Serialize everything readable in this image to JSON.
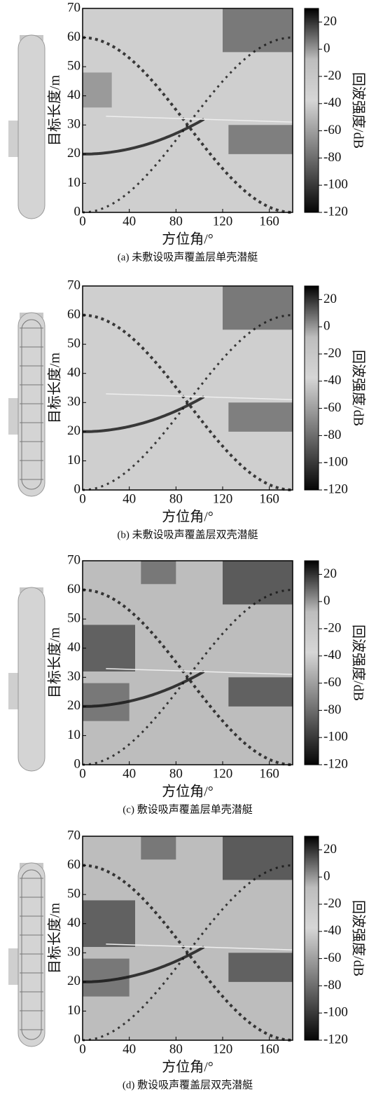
{
  "chart_data": [
    {
      "type": "heatmap",
      "caption": "(a) 未敷设吸声覆盖层单壳潜艇",
      "xlabel": "方位角/°",
      "ylabel": "目标长度/m",
      "colorbar_label": "回波强度/dB",
      "xlim": [
        0,
        180
      ],
      "xticks": [
        0,
        40,
        80,
        120,
        160
      ],
      "ylim": [
        0,
        70
      ],
      "yticks": [
        0,
        10,
        20,
        30,
        40,
        50,
        60,
        70
      ],
      "clim": [
        -120,
        30
      ],
      "cticks": [
        20,
        0,
        -20,
        -40,
        -60,
        -80,
        -100,
        -120
      ]
    },
    {
      "type": "heatmap",
      "caption": "(b) 未敷设吸声覆盖层双壳潜艇",
      "xlabel": "方位角/°",
      "ylabel": "目标长度/m",
      "colorbar_label": "回波强度/dB",
      "xlim": [
        0,
        180
      ],
      "xticks": [
        0,
        40,
        80,
        120,
        160
      ],
      "ylim": [
        0,
        70
      ],
      "yticks": [
        0,
        10,
        20,
        30,
        40,
        50,
        60,
        70
      ],
      "clim": [
        -120,
        30
      ],
      "cticks": [
        20,
        0,
        -20,
        -40,
        -60,
        -80,
        -100,
        -120
      ]
    },
    {
      "type": "heatmap",
      "caption": "(c) 敷设吸声覆盖层单壳潜艇",
      "xlabel": "方位角/°",
      "ylabel": "目标长度/m",
      "colorbar_label": "回波强度/dB",
      "xlim": [
        0,
        180
      ],
      "xticks": [
        0,
        40,
        80,
        120,
        160
      ],
      "ylim": [
        0,
        70
      ],
      "yticks": [
        0,
        10,
        20,
        30,
        40,
        50,
        60,
        70
      ],
      "clim": [
        -120,
        30
      ],
      "cticks": [
        20,
        0,
        -20,
        -40,
        -60,
        -80,
        -100,
        -120
      ]
    },
    {
      "type": "heatmap",
      "caption": "(d) 敷设吸声覆盖层双壳潜艇",
      "xlabel": "方位角/°",
      "ylabel": "目标长度/m",
      "colorbar_label": "回波强度/dB",
      "xlim": [
        0,
        180
      ],
      "xticks": [
        0,
        40,
        80,
        120,
        160
      ],
      "ylim": [
        0,
        70
      ],
      "yticks": [
        0,
        10,
        20,
        30,
        40,
        50,
        60,
        70
      ],
      "clim": [
        -120,
        30
      ],
      "cticks": [
        20,
        0,
        -20,
        -40,
        -60,
        -80,
        -100,
        -120
      ]
    }
  ]
}
